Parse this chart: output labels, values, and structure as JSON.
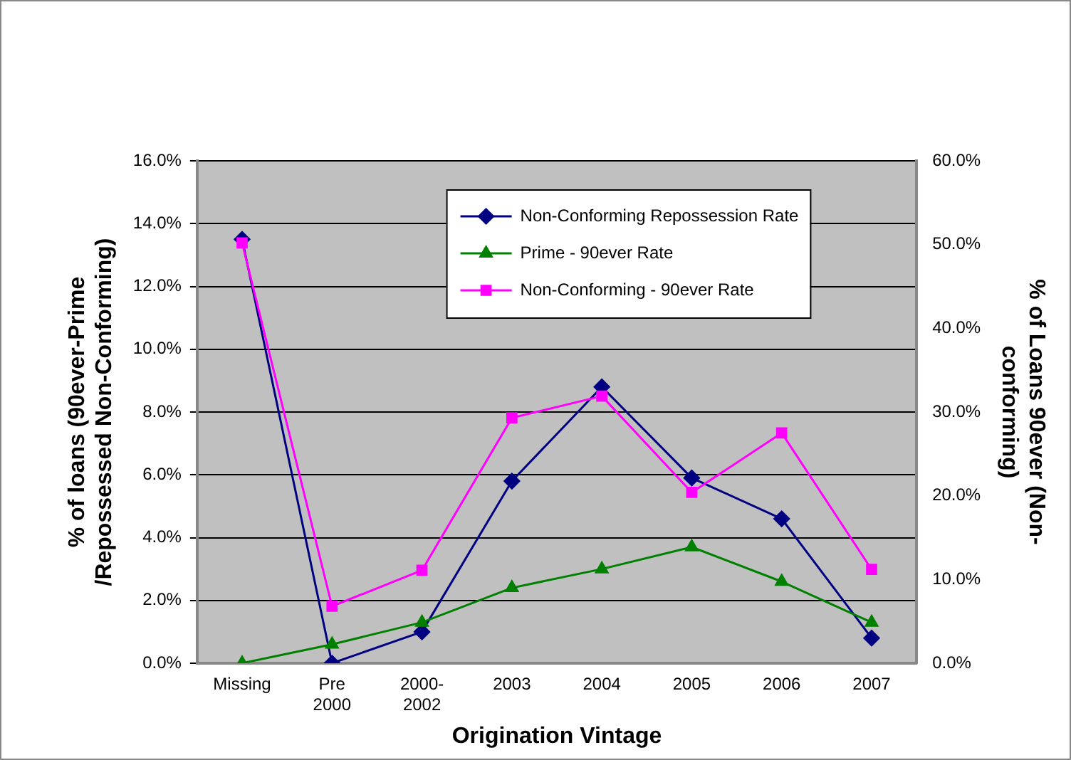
{
  "chart_data": {
    "type": "line",
    "categories": [
      "Missing",
      "Pre 2000",
      "2000-2002",
      "2003",
      "2004",
      "2005",
      "2006",
      "2007"
    ],
    "series": [
      {
        "name": "Non-Conforming Repossession Rate",
        "color": "#000080",
        "marker": "diamond",
        "values": [
          13.5,
          0.0,
          1.0,
          5.8,
          8.8,
          5.9,
          4.6,
          0.8
        ]
      },
      {
        "name": "Prime - 90ever Rate",
        "color": "#008000",
        "marker": "triangle",
        "values": [
          0.0,
          0.6,
          1.3,
          2.4,
          3.0,
          3.7,
          2.6,
          1.3
        ]
      },
      {
        "name": "Non-Conforming - 90ever Rate",
        "color": "#ff00ff",
        "marker": "square",
        "axis": "y2",
        "values": [
          50.2,
          6.8,
          11.1,
          29.3,
          31.9,
          20.4,
          27.5,
          11.2
        ]
      }
    ],
    "xlabel": "Origination Vintage",
    "ylabel": "% of loans (90ever-Prime /Repossessed Non-Conforming)",
    "y2label": "% of Loans 90ever (Non-conforming)",
    "ylim": [
      0,
      16
    ],
    "yticks": [
      {
        "value": 0,
        "label": "0.0%"
      },
      {
        "value": 2,
        "label": "2.0%"
      },
      {
        "value": 4,
        "label": "4.0%"
      },
      {
        "value": 6,
        "label": "6.0%"
      },
      {
        "value": 8,
        "label": "8.0%"
      },
      {
        "value": 10,
        "label": "10.0%"
      },
      {
        "value": 12,
        "label": "12.0%"
      },
      {
        "value": 14,
        "label": "14.0%"
      },
      {
        "value": 16,
        "label": "16.0%"
      }
    ],
    "y2lim": [
      0,
      60
    ],
    "y2ticks": [
      {
        "value": 0,
        "label": "0.0%"
      },
      {
        "value": 10,
        "label": "10.0%"
      },
      {
        "value": 20,
        "label": "20.0%"
      },
      {
        "value": 30,
        "label": "30.0%"
      },
      {
        "value": 40,
        "label": "40.0%"
      },
      {
        "value": 50,
        "label": "50.0%"
      },
      {
        "value": 60,
        "label": "60.0%"
      }
    ],
    "grid": "y",
    "legend": "top"
  }
}
